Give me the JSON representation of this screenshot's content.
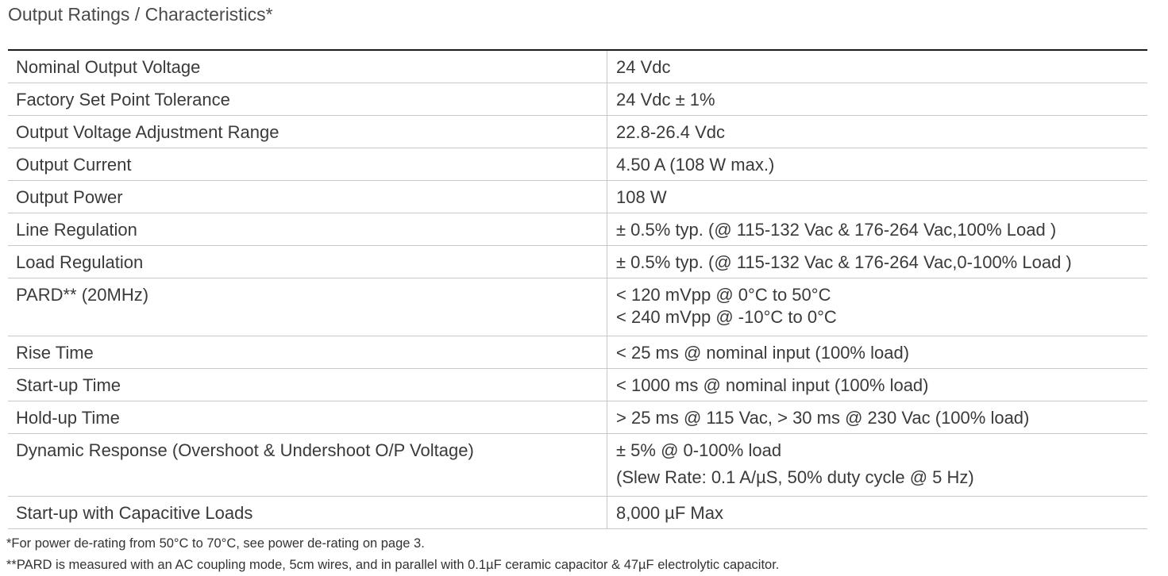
{
  "title": "Output Ratings / Characteristics*",
  "rows": [
    {
      "parameter": "Nominal Output Voltage",
      "value": [
        "24 Vdc"
      ]
    },
    {
      "parameter": "Factory Set Point Tolerance",
      "value": [
        "24 Vdc ± 1%"
      ]
    },
    {
      "parameter": "Output Voltage Adjustment Range",
      "value": [
        "22.8-26.4 Vdc"
      ]
    },
    {
      "parameter": "Output Current",
      "value": [
        "4.50 A (108 W max.)"
      ]
    },
    {
      "parameter": "Output Power",
      "value": [
        "108 W"
      ]
    },
    {
      "parameter": "Line Regulation",
      "value": [
        "± 0.5% typ. (@ 115-132 Vac & 176-264 Vac,100% Load )"
      ]
    },
    {
      "parameter": "Load Regulation",
      "value": [
        "± 0.5% typ. (@ 115-132 Vac & 176-264 Vac,0-100% Load )"
      ]
    },
    {
      "parameter": "PARD** (20MHz)",
      "value": [
        "< 120 mVpp @ 0°C to 50°C",
        "< 240 mVpp @ -10°C to 0°C"
      ]
    },
    {
      "parameter": "Rise Time",
      "value": [
        "< 25 ms @ nominal input (100% load)"
      ]
    },
    {
      "parameter": "Start-up Time",
      "value": [
        "< 1000 ms @ nominal input (100% load)"
      ]
    },
    {
      "parameter": "Hold-up Time",
      "value": [
        "> 25 ms @ 115 Vac, > 30 ms @ 230 Vac (100% load)"
      ]
    },
    {
      "parameter": "Dynamic Response (Overshoot & Undershoot O/P Voltage)",
      "value": [
        "± 5% @ 0-100% load",
        "(Slew Rate: 0.1 A/µS, 50% duty cycle @ 5 Hz)"
      ]
    },
    {
      "parameter": "Start-up with Capacitive Loads",
      "value": [
        "8,000 µF Max"
      ]
    }
  ],
  "footnotes": [
    "*For power de-rating from 50°C to 70°C, see power de-rating on page 3.",
    "**PARD is measured with an AC coupling mode, 5cm wires, and in parallel with 0.1µF ceramic capacitor & 47µF electrolytic capacitor."
  ]
}
